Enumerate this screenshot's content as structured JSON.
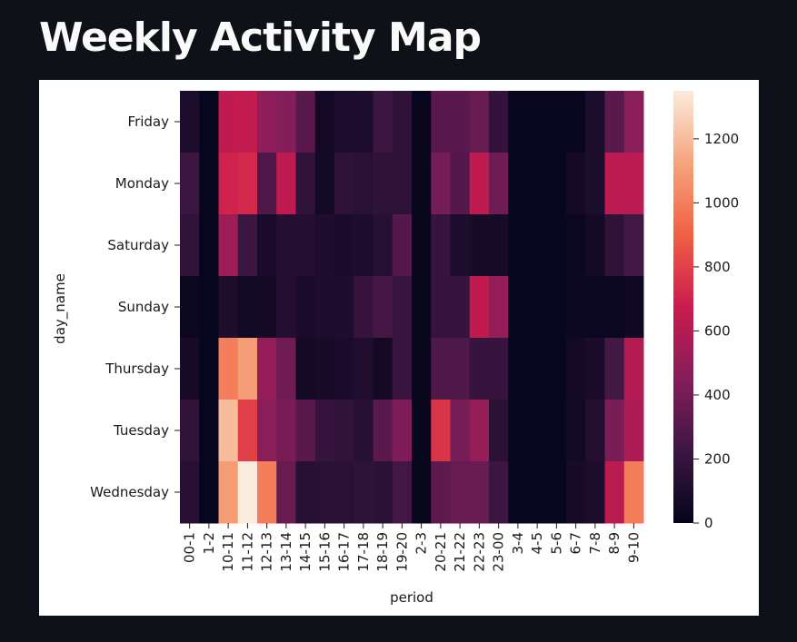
{
  "page": {
    "title": "Weekly Activity Map"
  },
  "chart_data": {
    "type": "heatmap",
    "title": "",
    "xlabel": "period",
    "ylabel": "day_name",
    "x_categories": [
      "00-1",
      "1-2",
      "10-11",
      "11-12",
      "12-13",
      "13-14",
      "14-15",
      "15-16",
      "16-17",
      "17-18",
      "18-19",
      "19-20",
      "2-3",
      "20-21",
      "21-22",
      "22-23",
      "23-00",
      "3-4",
      "4-5",
      "5-6",
      "6-7",
      "7-8",
      "8-9",
      "9-10"
    ],
    "y_categories": [
      "Friday",
      "Monday",
      "Saturday",
      "Sunday",
      "Thursday",
      "Tuesday",
      "Wednesday"
    ],
    "values": [
      [
        100,
        10,
        640,
        650,
        480,
        450,
        320,
        70,
        100,
        110,
        220,
        170,
        20,
        320,
        320,
        360,
        190,
        15,
        15,
        15,
        15,
        100,
        320,
        470
      ],
      [
        220,
        10,
        700,
        720,
        280,
        640,
        180,
        60,
        170,
        150,
        170,
        170,
        20,
        400,
        300,
        640,
        380,
        15,
        15,
        15,
        70,
        100,
        620,
        620
      ],
      [
        180,
        10,
        530,
        220,
        90,
        130,
        130,
        110,
        90,
        110,
        140,
        300,
        20,
        200,
        110,
        80,
        80,
        15,
        15,
        15,
        30,
        70,
        170,
        240
      ],
      [
        30,
        10,
        110,
        60,
        70,
        130,
        90,
        110,
        110,
        200,
        250,
        210,
        20,
        200,
        200,
        640,
        500,
        15,
        15,
        15,
        40,
        40,
        30,
        50
      ],
      [
        80,
        10,
        1000,
        1100,
        500,
        380,
        70,
        80,
        90,
        120,
        70,
        210,
        20,
        280,
        280,
        200,
        200,
        15,
        15,
        15,
        70,
        90,
        240,
        600
      ],
      [
        180,
        10,
        1200,
        800,
        470,
        420,
        320,
        200,
        180,
        140,
        320,
        430,
        20,
        760,
        410,
        500,
        160,
        15,
        15,
        15,
        60,
        130,
        420,
        580
      ],
      [
        140,
        10,
        1100,
        1350,
        1000,
        360,
        140,
        150,
        150,
        170,
        160,
        240,
        20,
        330,
        360,
        360,
        220,
        15,
        15,
        15,
        80,
        110,
        620,
        1000
      ]
    ],
    "zlim": [
      0,
      1350
    ],
    "colorbar_ticks": [
      0,
      200,
      400,
      600,
      800,
      1000,
      1200
    ],
    "colormap": "rocket",
    "colormap_stops": [
      "#03051a",
      "#3c1642",
      "#841e5a",
      "#cb1b4f",
      "#f06043",
      "#f6a47c",
      "#faebdd"
    ],
    "grid": false,
    "legend": "colorbar-right"
  }
}
